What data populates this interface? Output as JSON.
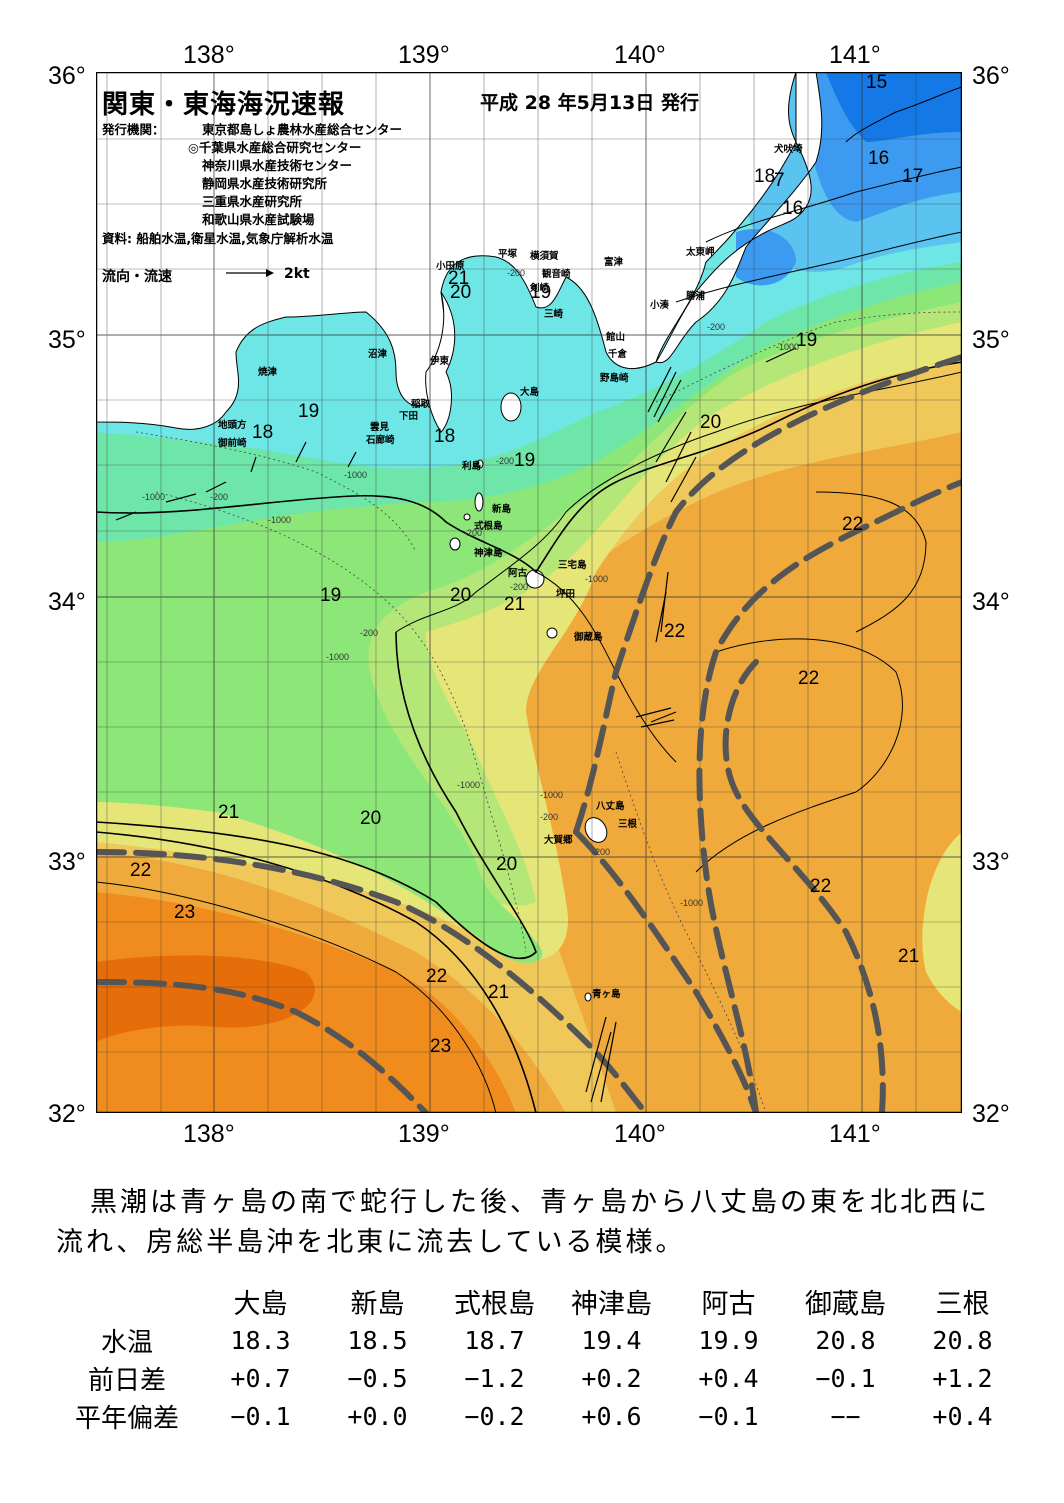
{
  "header": {
    "title": "関東・東海海況速報",
    "issue_date": "平成 28 年5月13日 発行",
    "publisher_label": "発行機関：",
    "publishers": [
      "東京都島しょ農林水産総合センター",
      "◎千葉県水産総合研究センター",
      "神奈川県水産技術センター",
      "静岡県水産技術研究所",
      "三重県水産研究所",
      "和歌山県水産試験場"
    ],
    "sources": "資料: 船舶水温,衛星水温,気象庁解析水温",
    "legend_label": "流向・流速",
    "legend_scale": "2kt"
  },
  "axes": {
    "lon_labels": [
      "138°",
      "139°",
      "140°",
      "141°"
    ],
    "lat_labels": [
      "36°",
      "35°",
      "34°",
      "33°",
      "32°"
    ]
  },
  "places": [
    {
      "name": "犬吠埼"
    },
    {
      "name": "太東岬"
    },
    {
      "name": "勝浦"
    },
    {
      "name": "小湊"
    },
    {
      "name": "富津"
    },
    {
      "name": "館山"
    },
    {
      "name": "千倉"
    },
    {
      "name": "野島崎"
    },
    {
      "name": "横須賀"
    },
    {
      "name": "平塚"
    },
    {
      "name": "観音崎"
    },
    {
      "name": "剣崎"
    },
    {
      "name": "三崎"
    },
    {
      "name": "小田原"
    },
    {
      "name": "沼津"
    },
    {
      "name": "伊東"
    },
    {
      "name": "焼津"
    },
    {
      "name": "稲取"
    },
    {
      "name": "下田"
    },
    {
      "name": "雲見"
    },
    {
      "name": "石廊崎"
    },
    {
      "name": "地頭方"
    },
    {
      "name": "御前崎"
    },
    {
      "name": "大島"
    },
    {
      "name": "利島"
    },
    {
      "name": "新島"
    },
    {
      "name": "式根島"
    },
    {
      "name": "神津島"
    },
    {
      "name": "三宅島"
    },
    {
      "name": "阿古"
    },
    {
      "name": "坪田"
    },
    {
      "name": "御蔵島"
    },
    {
      "name": "八丈島"
    },
    {
      "name": "三根"
    },
    {
      "name": "大賀郷"
    },
    {
      "name": "青ヶ島"
    }
  ],
  "isotherm_labels": [
    "15",
    "16",
    "17",
    "18",
    "7",
    "16",
    "21",
    "20",
    "19",
    "19",
    "18",
    "19",
    "18",
    "19",
    "20",
    "22",
    "22",
    "20",
    "21",
    "22",
    "19",
    "20",
    "21",
    "20",
    "22",
    "23",
    "22",
    "21",
    "23",
    "22",
    "21"
  ],
  "depth_labels": [
    "-200",
    "-200",
    "-1000",
    "-200",
    "-1000",
    "-1000",
    "-200",
    "-1000",
    "-200",
    "-200",
    "-1000",
    "-200",
    "-1000",
    "-200",
    "-1000",
    "-1000",
    "-200",
    "-1000"
  ],
  "summary": "黒潮は青ヶ島の南で蛇行した後、青ヶ島から八丈島の東を北北西に流れ、房総半島沖を北東に流去している模様。",
  "table": {
    "columns": [
      "大島",
      "新島",
      "式根島",
      "神津島",
      "阿古",
      "御蔵島",
      "三根"
    ],
    "rows": [
      {
        "label": "水温",
        "values": [
          "18.3",
          "18.5",
          "18.7",
          "19.4",
          "19.9",
          "20.8",
          "20.8"
        ]
      },
      {
        "label": "前日差",
        "values": [
          "+0.7",
          "−0.5",
          "−1.2",
          "+0.2",
          "+0.4",
          "−0.1",
          "+1.2"
        ]
      },
      {
        "label": "平年偏差",
        "values": [
          "−0.1",
          "+0.0",
          "−0.2",
          "+0.6",
          "−0.1",
          "−−",
          "+0.4"
        ]
      }
    ]
  },
  "colors": {
    "sst_15": "#1478e6",
    "sst_16": "#3c9bf0",
    "sst_17": "#5ac3f0",
    "sst_18": "#6ee6e6",
    "sst_19": "#6ee6aa",
    "sst_20": "#8ce678",
    "sst_21": "#b4e678",
    "sst_21_5": "#e6e678",
    "sst_22": "#f0c85a",
    "sst_22_5": "#f0aa3c",
    "sst_23": "#f08c1e",
    "sst_24": "#e66e0a",
    "kuroshio_axis": "#555555",
    "land": "#ffffff",
    "grid": "#000000"
  }
}
